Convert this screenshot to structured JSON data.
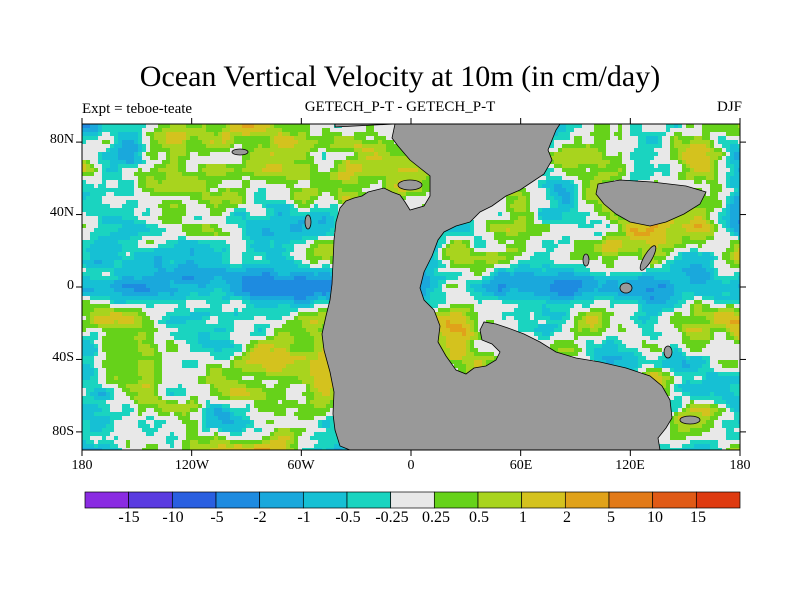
{
  "title": "Ocean Vertical Velocity at 10m (in cm/day)",
  "subtitle_left": "Expt = teboe-teate",
  "subtitle_center": "GETECH_P-T - GETECH_P-T",
  "subtitle_right": "DJF",
  "colors": {
    "land": "#999999",
    "bins": [
      "#8a2be2",
      "#5a3be0",
      "#2a5fe0",
      "#1e8be0",
      "#1aa8dc",
      "#16c0d4",
      "#1ad4c0",
      "#e8e8e8",
      "#66d21a",
      "#a8d41e",
      "#d4c21e",
      "#e0a21a",
      "#e27a18",
      "#e05a16",
      "#de3a10"
    ]
  },
  "chart_data": {
    "type": "heatmap",
    "title": "Ocean Vertical Velocity at 10m (in cm/day)",
    "variable": "Ocean Vertical Velocity at 10m",
    "units": "cm/day",
    "season": "DJF",
    "x_ticks": [
      "180",
      "120W",
      "60W",
      "0",
      "60E",
      "120E",
      "180"
    ],
    "y_ticks": [
      "80N",
      "40N",
      "0",
      "40S",
      "80S"
    ],
    "lon_range": [
      -180,
      180
    ],
    "lat_range": [
      -90,
      90
    ],
    "colorbar_levels": [
      "-15",
      "-10",
      "-5",
      "-2",
      "-1",
      "-0.5",
      "-0.25",
      "0.25",
      "0.5",
      "1",
      "2",
      "5",
      "10",
      "15"
    ],
    "colorbar_bins": 15
  }
}
